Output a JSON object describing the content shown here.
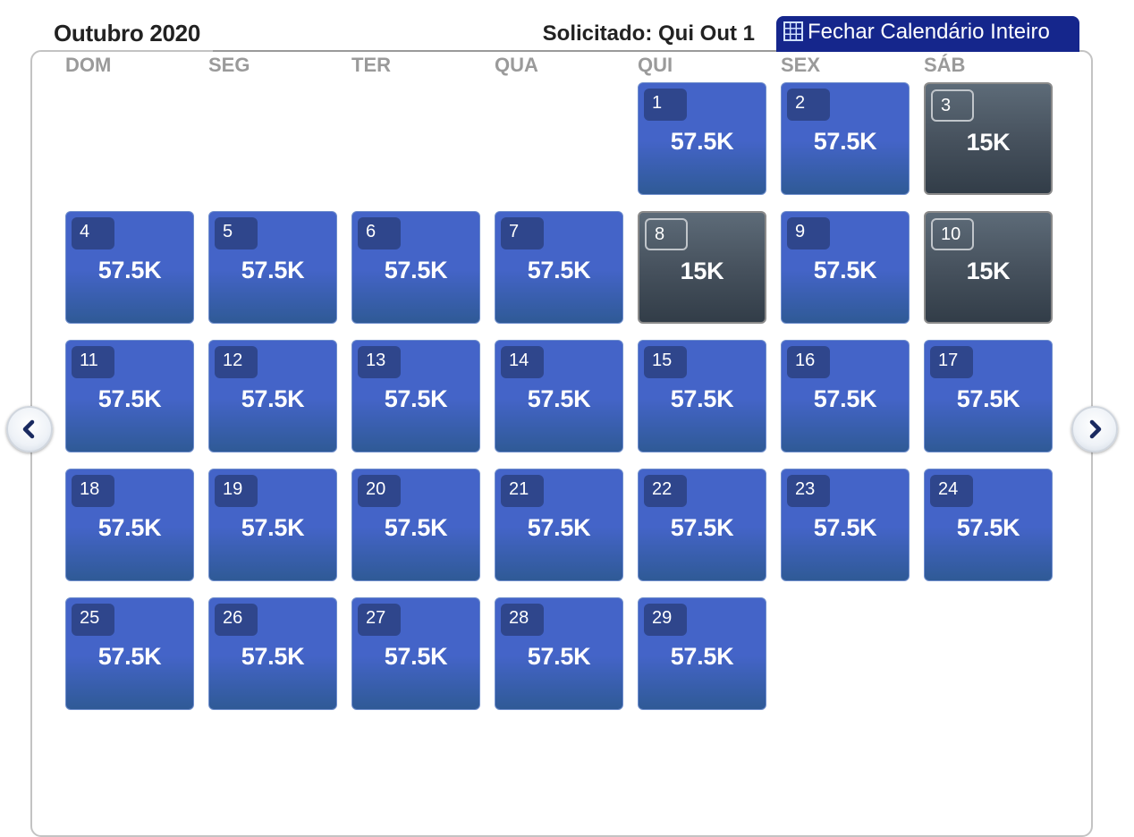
{
  "header": {
    "month_title": "Outubro 2020",
    "requested": "Solicitado: Qui Out 1",
    "close_button": "Fechar Calendário Inteiro"
  },
  "weekdays": [
    "DOM",
    "SEG",
    "TER",
    "QUA",
    "QUI",
    "SEX",
    "SÁB"
  ],
  "days": [
    {
      "day": "1",
      "price": "57.5K",
      "low": false
    },
    {
      "day": "2",
      "price": "57.5K",
      "low": false
    },
    {
      "day": "3",
      "price": "15K",
      "low": true
    },
    {
      "day": "4",
      "price": "57.5K",
      "low": false
    },
    {
      "day": "5",
      "price": "57.5K",
      "low": false
    },
    {
      "day": "6",
      "price": "57.5K",
      "low": false
    },
    {
      "day": "7",
      "price": "57.5K",
      "low": false
    },
    {
      "day": "8",
      "price": "15K",
      "low": true
    },
    {
      "day": "9",
      "price": "57.5K",
      "low": false
    },
    {
      "day": "10",
      "price": "15K",
      "low": true
    },
    {
      "day": "11",
      "price": "57.5K",
      "low": false
    },
    {
      "day": "12",
      "price": "57.5K",
      "low": false
    },
    {
      "day": "13",
      "price": "57.5K",
      "low": false
    },
    {
      "day": "14",
      "price": "57.5K",
      "low": false
    },
    {
      "day": "15",
      "price": "57.5K",
      "low": false
    },
    {
      "day": "16",
      "price": "57.5K",
      "low": false
    },
    {
      "day": "17",
      "price": "57.5K",
      "low": false
    },
    {
      "day": "18",
      "price": "57.5K",
      "low": false
    },
    {
      "day": "19",
      "price": "57.5K",
      "low": false
    },
    {
      "day": "20",
      "price": "57.5K",
      "low": false
    },
    {
      "day": "21",
      "price": "57.5K",
      "low": false
    },
    {
      "day": "22",
      "price": "57.5K",
      "low": false
    },
    {
      "day": "23",
      "price": "57.5K",
      "low": false
    },
    {
      "day": "24",
      "price": "57.5K",
      "low": false
    },
    {
      "day": "25",
      "price": "57.5K",
      "low": false
    },
    {
      "day": "26",
      "price": "57.5K",
      "low": false
    },
    {
      "day": "27",
      "price": "57.5K",
      "low": false
    },
    {
      "day": "28",
      "price": "57.5K",
      "low": false
    },
    {
      "day": "29",
      "price": "57.5K",
      "low": false
    }
  ],
  "colors": {
    "available": "#4464c8",
    "low_price": "#47525e",
    "close_button": "#15268c"
  },
  "icons": {
    "close_button": "grid-icon",
    "prev": "chevron-left-icon",
    "next": "chevron-right-icon"
  }
}
